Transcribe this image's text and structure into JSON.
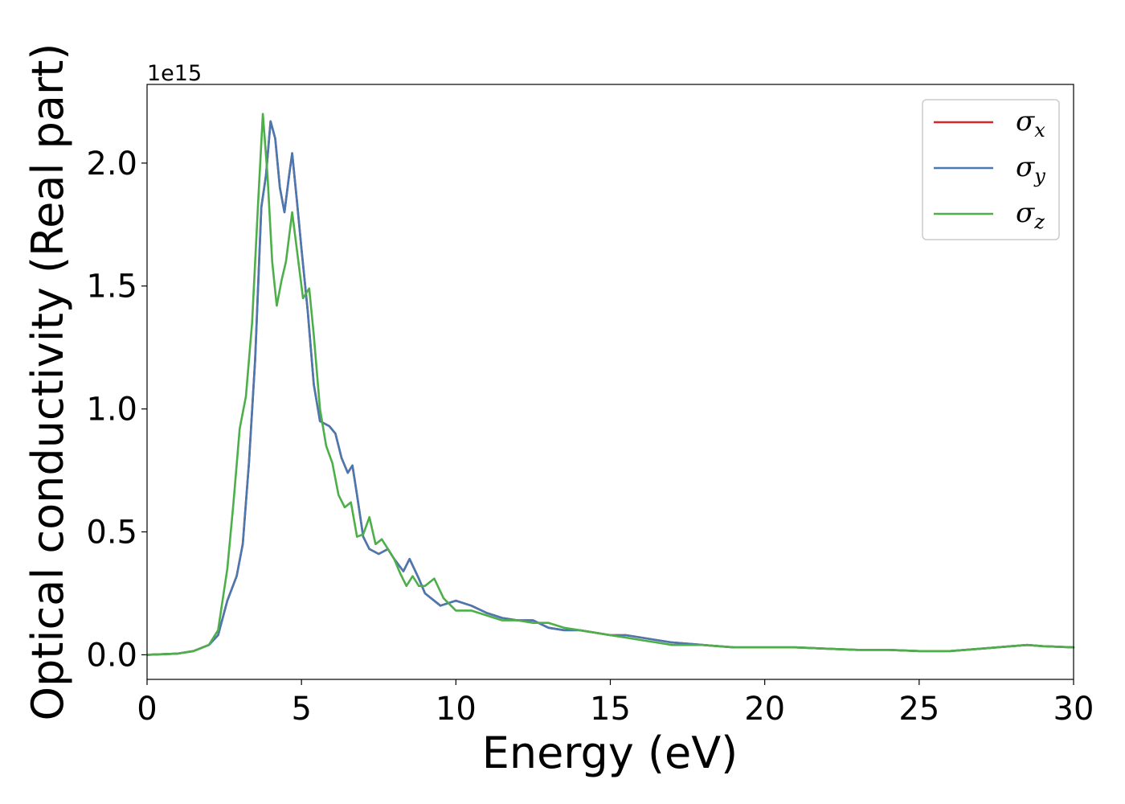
{
  "chart_data": {
    "type": "line",
    "title": "",
    "xlabel": "Energy (eV)",
    "ylabel": "Optical conductivity (Real part)",
    "y_offset_text": "1e15",
    "xlim": [
      0,
      30
    ],
    "ylim": [
      -0.1,
      2.32
    ],
    "xticks": [
      0,
      5,
      10,
      15,
      20,
      25,
      30
    ],
    "xtick_labels": [
      "0",
      "5",
      "10",
      "15",
      "20",
      "25",
      "30"
    ],
    "yticks": [
      0.0,
      0.5,
      1.0,
      1.5,
      2.0
    ],
    "ytick_labels": [
      "0.0",
      "0.5",
      "1.0",
      "1.5",
      "2.0"
    ],
    "grid": false,
    "legend_position": "top-right",
    "series": [
      {
        "name": "σx",
        "legend_symbol": "σ",
        "legend_subscript": "x",
        "color": "#d62728",
        "x": [
          0,
          1,
          1.5,
          2.0,
          2.3,
          2.6,
          2.9,
          3.1,
          3.3,
          3.5,
          3.7,
          3.85,
          4.0,
          4.15,
          4.3,
          4.45,
          4.6,
          4.7,
          4.85,
          5.0,
          5.2,
          5.4,
          5.6,
          5.9,
          6.1,
          6.3,
          6.5,
          6.65,
          6.8,
          7.0,
          7.2,
          7.5,
          7.8,
          8.0,
          8.3,
          8.5,
          8.8,
          9.0,
          9.5,
          10.0,
          10.5,
          11.0,
          11.5,
          12.0,
          12.5,
          13.0,
          13.5,
          14.0,
          14.5,
          15.0,
          15.5,
          16.0,
          16.5,
          17.0,
          18.0,
          19.0,
          20.0,
          21.0,
          22.0,
          23.0,
          24.0,
          25.0,
          26.0,
          27.0,
          28.0,
          28.5,
          29.0,
          30.0
        ],
        "values": [
          0.0,
          0.005,
          0.015,
          0.04,
          0.08,
          0.22,
          0.32,
          0.45,
          0.78,
          1.2,
          1.82,
          1.95,
          2.17,
          2.1,
          1.9,
          1.8,
          1.95,
          2.04,
          1.85,
          1.65,
          1.4,
          1.1,
          0.95,
          0.93,
          0.9,
          0.8,
          0.74,
          0.77,
          0.65,
          0.48,
          0.43,
          0.41,
          0.43,
          0.39,
          0.34,
          0.39,
          0.31,
          0.25,
          0.2,
          0.22,
          0.2,
          0.17,
          0.15,
          0.14,
          0.14,
          0.11,
          0.1,
          0.1,
          0.09,
          0.08,
          0.08,
          0.07,
          0.06,
          0.05,
          0.04,
          0.03,
          0.03,
          0.03,
          0.025,
          0.02,
          0.02,
          0.015,
          0.015,
          0.025,
          0.035,
          0.04,
          0.035,
          0.03
        ]
      },
      {
        "name": "σy",
        "legend_symbol": "σ",
        "legend_subscript": "y",
        "color": "#4a78b0",
        "x": [
          0,
          1,
          1.5,
          2.0,
          2.3,
          2.6,
          2.9,
          3.1,
          3.3,
          3.5,
          3.7,
          3.85,
          4.0,
          4.15,
          4.3,
          4.45,
          4.6,
          4.7,
          4.85,
          5.0,
          5.2,
          5.4,
          5.6,
          5.9,
          6.1,
          6.3,
          6.5,
          6.65,
          6.8,
          7.0,
          7.2,
          7.5,
          7.8,
          8.0,
          8.3,
          8.5,
          8.8,
          9.0,
          9.5,
          10.0,
          10.5,
          11.0,
          11.5,
          12.0,
          12.5,
          13.0,
          13.5,
          14.0,
          14.5,
          15.0,
          15.5,
          16.0,
          16.5,
          17.0,
          18.0,
          19.0,
          20.0,
          21.0,
          22.0,
          23.0,
          24.0,
          25.0,
          26.0,
          27.0,
          28.0,
          28.5,
          29.0,
          30.0
        ],
        "values": [
          0.0,
          0.005,
          0.015,
          0.04,
          0.08,
          0.22,
          0.32,
          0.45,
          0.78,
          1.2,
          1.82,
          1.95,
          2.17,
          2.1,
          1.9,
          1.8,
          1.95,
          2.04,
          1.85,
          1.65,
          1.4,
          1.1,
          0.95,
          0.93,
          0.9,
          0.8,
          0.74,
          0.77,
          0.65,
          0.48,
          0.43,
          0.41,
          0.43,
          0.39,
          0.34,
          0.39,
          0.31,
          0.25,
          0.2,
          0.22,
          0.2,
          0.17,
          0.15,
          0.14,
          0.14,
          0.11,
          0.1,
          0.1,
          0.09,
          0.08,
          0.08,
          0.07,
          0.06,
          0.05,
          0.04,
          0.03,
          0.03,
          0.03,
          0.025,
          0.02,
          0.02,
          0.015,
          0.015,
          0.025,
          0.035,
          0.04,
          0.035,
          0.03
        ]
      },
      {
        "name": "σz",
        "legend_symbol": "σ",
        "legend_subscript": "z",
        "color": "#4daf4a",
        "x": [
          0,
          1,
          1.5,
          2.0,
          2.3,
          2.6,
          2.8,
          3.0,
          3.2,
          3.4,
          3.6,
          3.75,
          3.9,
          4.05,
          4.2,
          4.35,
          4.5,
          4.7,
          4.9,
          5.05,
          5.25,
          5.4,
          5.6,
          5.8,
          6.0,
          6.2,
          6.4,
          6.6,
          6.8,
          7.0,
          7.2,
          7.4,
          7.6,
          7.8,
          8.0,
          8.2,
          8.4,
          8.6,
          8.8,
          9.0,
          9.3,
          9.6,
          10.0,
          10.5,
          11.0,
          11.5,
          12.0,
          12.5,
          13.0,
          13.5,
          14.0,
          14.5,
          15.0,
          15.5,
          16.0,
          16.5,
          17.0,
          18.0,
          19.0,
          20.0,
          21.0,
          22.0,
          23.0,
          24.0,
          25.0,
          26.0,
          27.0,
          28.0,
          28.5,
          29.0,
          30.0
        ],
        "values": [
          0.0,
          0.005,
          0.015,
          0.04,
          0.1,
          0.35,
          0.62,
          0.92,
          1.05,
          1.35,
          1.85,
          2.2,
          1.95,
          1.6,
          1.42,
          1.52,
          1.6,
          1.8,
          1.6,
          1.45,
          1.49,
          1.3,
          1.0,
          0.85,
          0.78,
          0.65,
          0.6,
          0.62,
          0.48,
          0.49,
          0.56,
          0.45,
          0.47,
          0.43,
          0.39,
          0.33,
          0.28,
          0.32,
          0.28,
          0.28,
          0.31,
          0.23,
          0.18,
          0.18,
          0.16,
          0.14,
          0.14,
          0.13,
          0.13,
          0.11,
          0.1,
          0.09,
          0.08,
          0.07,
          0.06,
          0.05,
          0.04,
          0.04,
          0.03,
          0.03,
          0.03,
          0.025,
          0.02,
          0.02,
          0.015,
          0.015,
          0.025,
          0.035,
          0.04,
          0.035,
          0.03
        ]
      }
    ]
  }
}
